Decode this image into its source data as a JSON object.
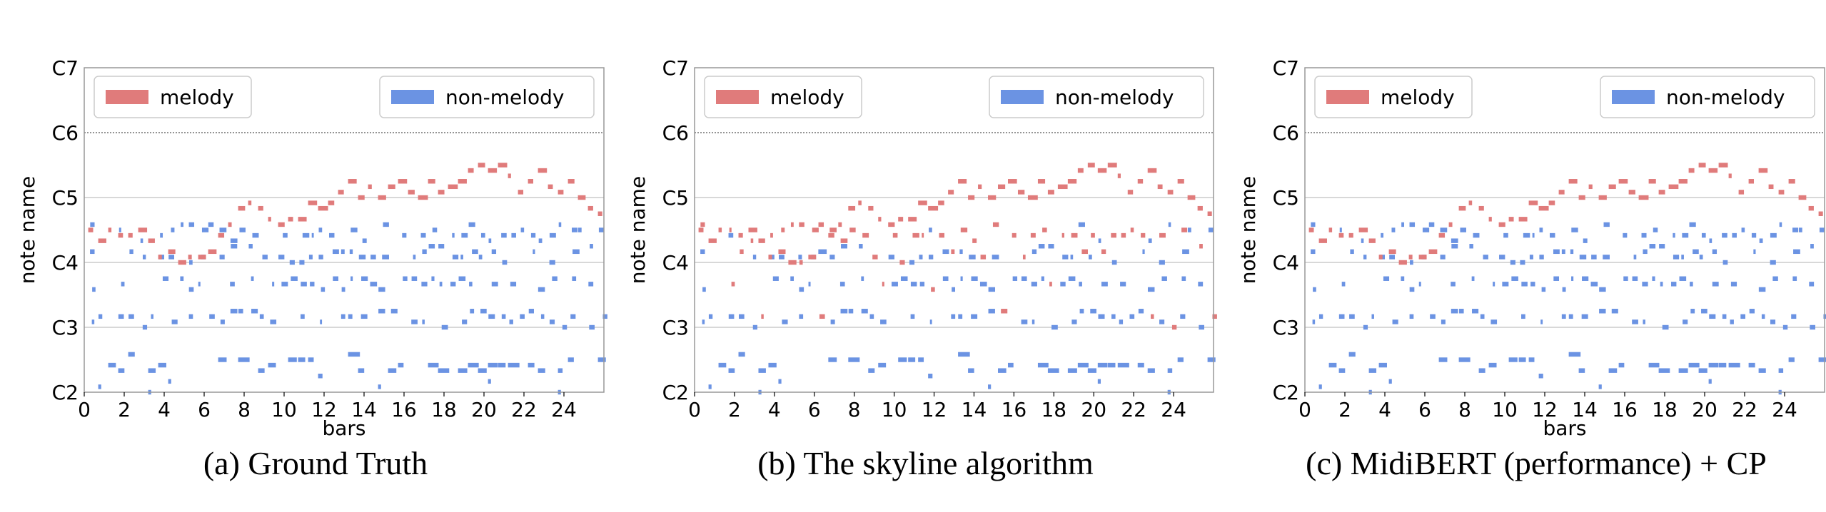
{
  "colors": {
    "melody": "#e07b7b",
    "non_melody": "#6b93e3",
    "grid": "#b0b0b0",
    "frame": "#999999"
  },
  "chart_data": [
    {
      "type": "pianoroll",
      "caption": "(a) Ground Truth",
      "xlabel": "bars",
      "ylabel": "note name",
      "xlim": [
        0,
        26
      ],
      "ylim": [
        "C2",
        "C7"
      ],
      "xticks": [
        "0",
        "2",
        "4",
        "6",
        "8",
        "10",
        "12",
        "14",
        "16",
        "18",
        "20",
        "22",
        "24"
      ],
      "yticks": [
        "C2",
        "C3",
        "C4",
        "C5",
        "C6",
        "C7"
      ],
      "legend": [
        {
          "key": "melody",
          "label": "melody",
          "position": "top-left"
        },
        {
          "key": "non_melody",
          "label": "non-melody",
          "position": "top-right"
        }
      ],
      "grid": "horizontal at C3, C4, C5, C6",
      "notes": {
        "seed": 11,
        "melody_source": "ground_truth"
      }
    },
    {
      "type": "pianoroll",
      "caption": "(b) The skyline algorithm",
      "xlabel": "",
      "ylabel": "note name",
      "xlim": [
        0,
        26
      ],
      "ylim": [
        "C2",
        "C7"
      ],
      "xticks": [
        "0",
        "2",
        "4",
        "6",
        "8",
        "10",
        "12",
        "14",
        "16",
        "18",
        "20",
        "22",
        "24"
      ],
      "yticks": [
        "C2",
        "C3",
        "C4",
        "C5",
        "C6",
        "C7"
      ],
      "legend": [
        {
          "key": "melody",
          "label": "melody",
          "position": "top-left"
        },
        {
          "key": "non_melody",
          "label": "non-melody",
          "position": "top-right"
        }
      ],
      "grid": "horizontal at C3, C4, C5, C6",
      "notes": {
        "seed": 11,
        "melody_source": "skyline"
      }
    },
    {
      "type": "pianoroll",
      "caption": "(c) MidiBERT (performance) + CP",
      "xlabel": "bars",
      "ylabel": "note name",
      "xlim": [
        0,
        26
      ],
      "ylim": [
        "C2",
        "C7"
      ],
      "xticks": [
        "0",
        "2",
        "4",
        "6",
        "8",
        "10",
        "12",
        "14",
        "16",
        "18",
        "20",
        "22",
        "24"
      ],
      "yticks": [
        "C2",
        "C3",
        "C4",
        "C5",
        "C6",
        "C7"
      ],
      "legend": [
        {
          "key": "melody",
          "label": "melody",
          "position": "top-left"
        },
        {
          "key": "non_melody",
          "label": "non-melody",
          "position": "top-right"
        }
      ],
      "grid": "horizontal at C3, C4, C5, C6",
      "notes": {
        "seed": 11,
        "melody_source": "ground_truth"
      }
    }
  ]
}
